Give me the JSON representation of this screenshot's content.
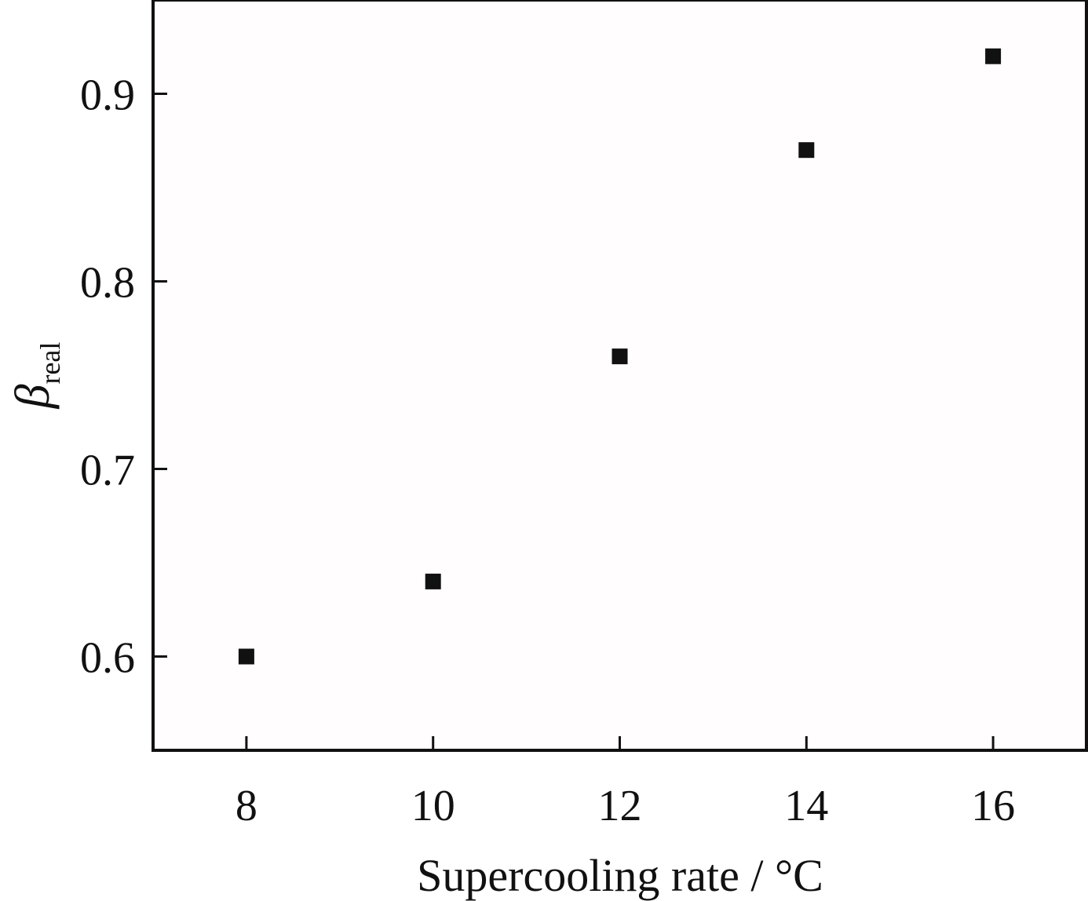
{
  "chart_data": {
    "type": "scatter",
    "title": "",
    "xlabel": "Supercooling rate / °C",
    "ylabel": {
      "symbol": "β",
      "subscript": "real"
    },
    "xlim": [
      7,
      17
    ],
    "ylim": [
      0.55,
      0.95
    ],
    "x_ticks": [
      8,
      10,
      12,
      14,
      16
    ],
    "x_tick_labels": [
      "8",
      "10",
      "12",
      "14",
      "16"
    ],
    "y_ticks": [
      0.6,
      0.7,
      0.8,
      0.9
    ],
    "y_tick_labels": [
      "0.6",
      "0.7",
      "0.8",
      "0.9"
    ],
    "grid": false,
    "legend": "none",
    "marker": "square",
    "marker_color": "#111111",
    "series": [
      {
        "x": [
          8,
          10,
          12,
          14,
          16
        ],
        "y": [
          0.6,
          0.64,
          0.76,
          0.87,
          0.92
        ]
      }
    ]
  }
}
